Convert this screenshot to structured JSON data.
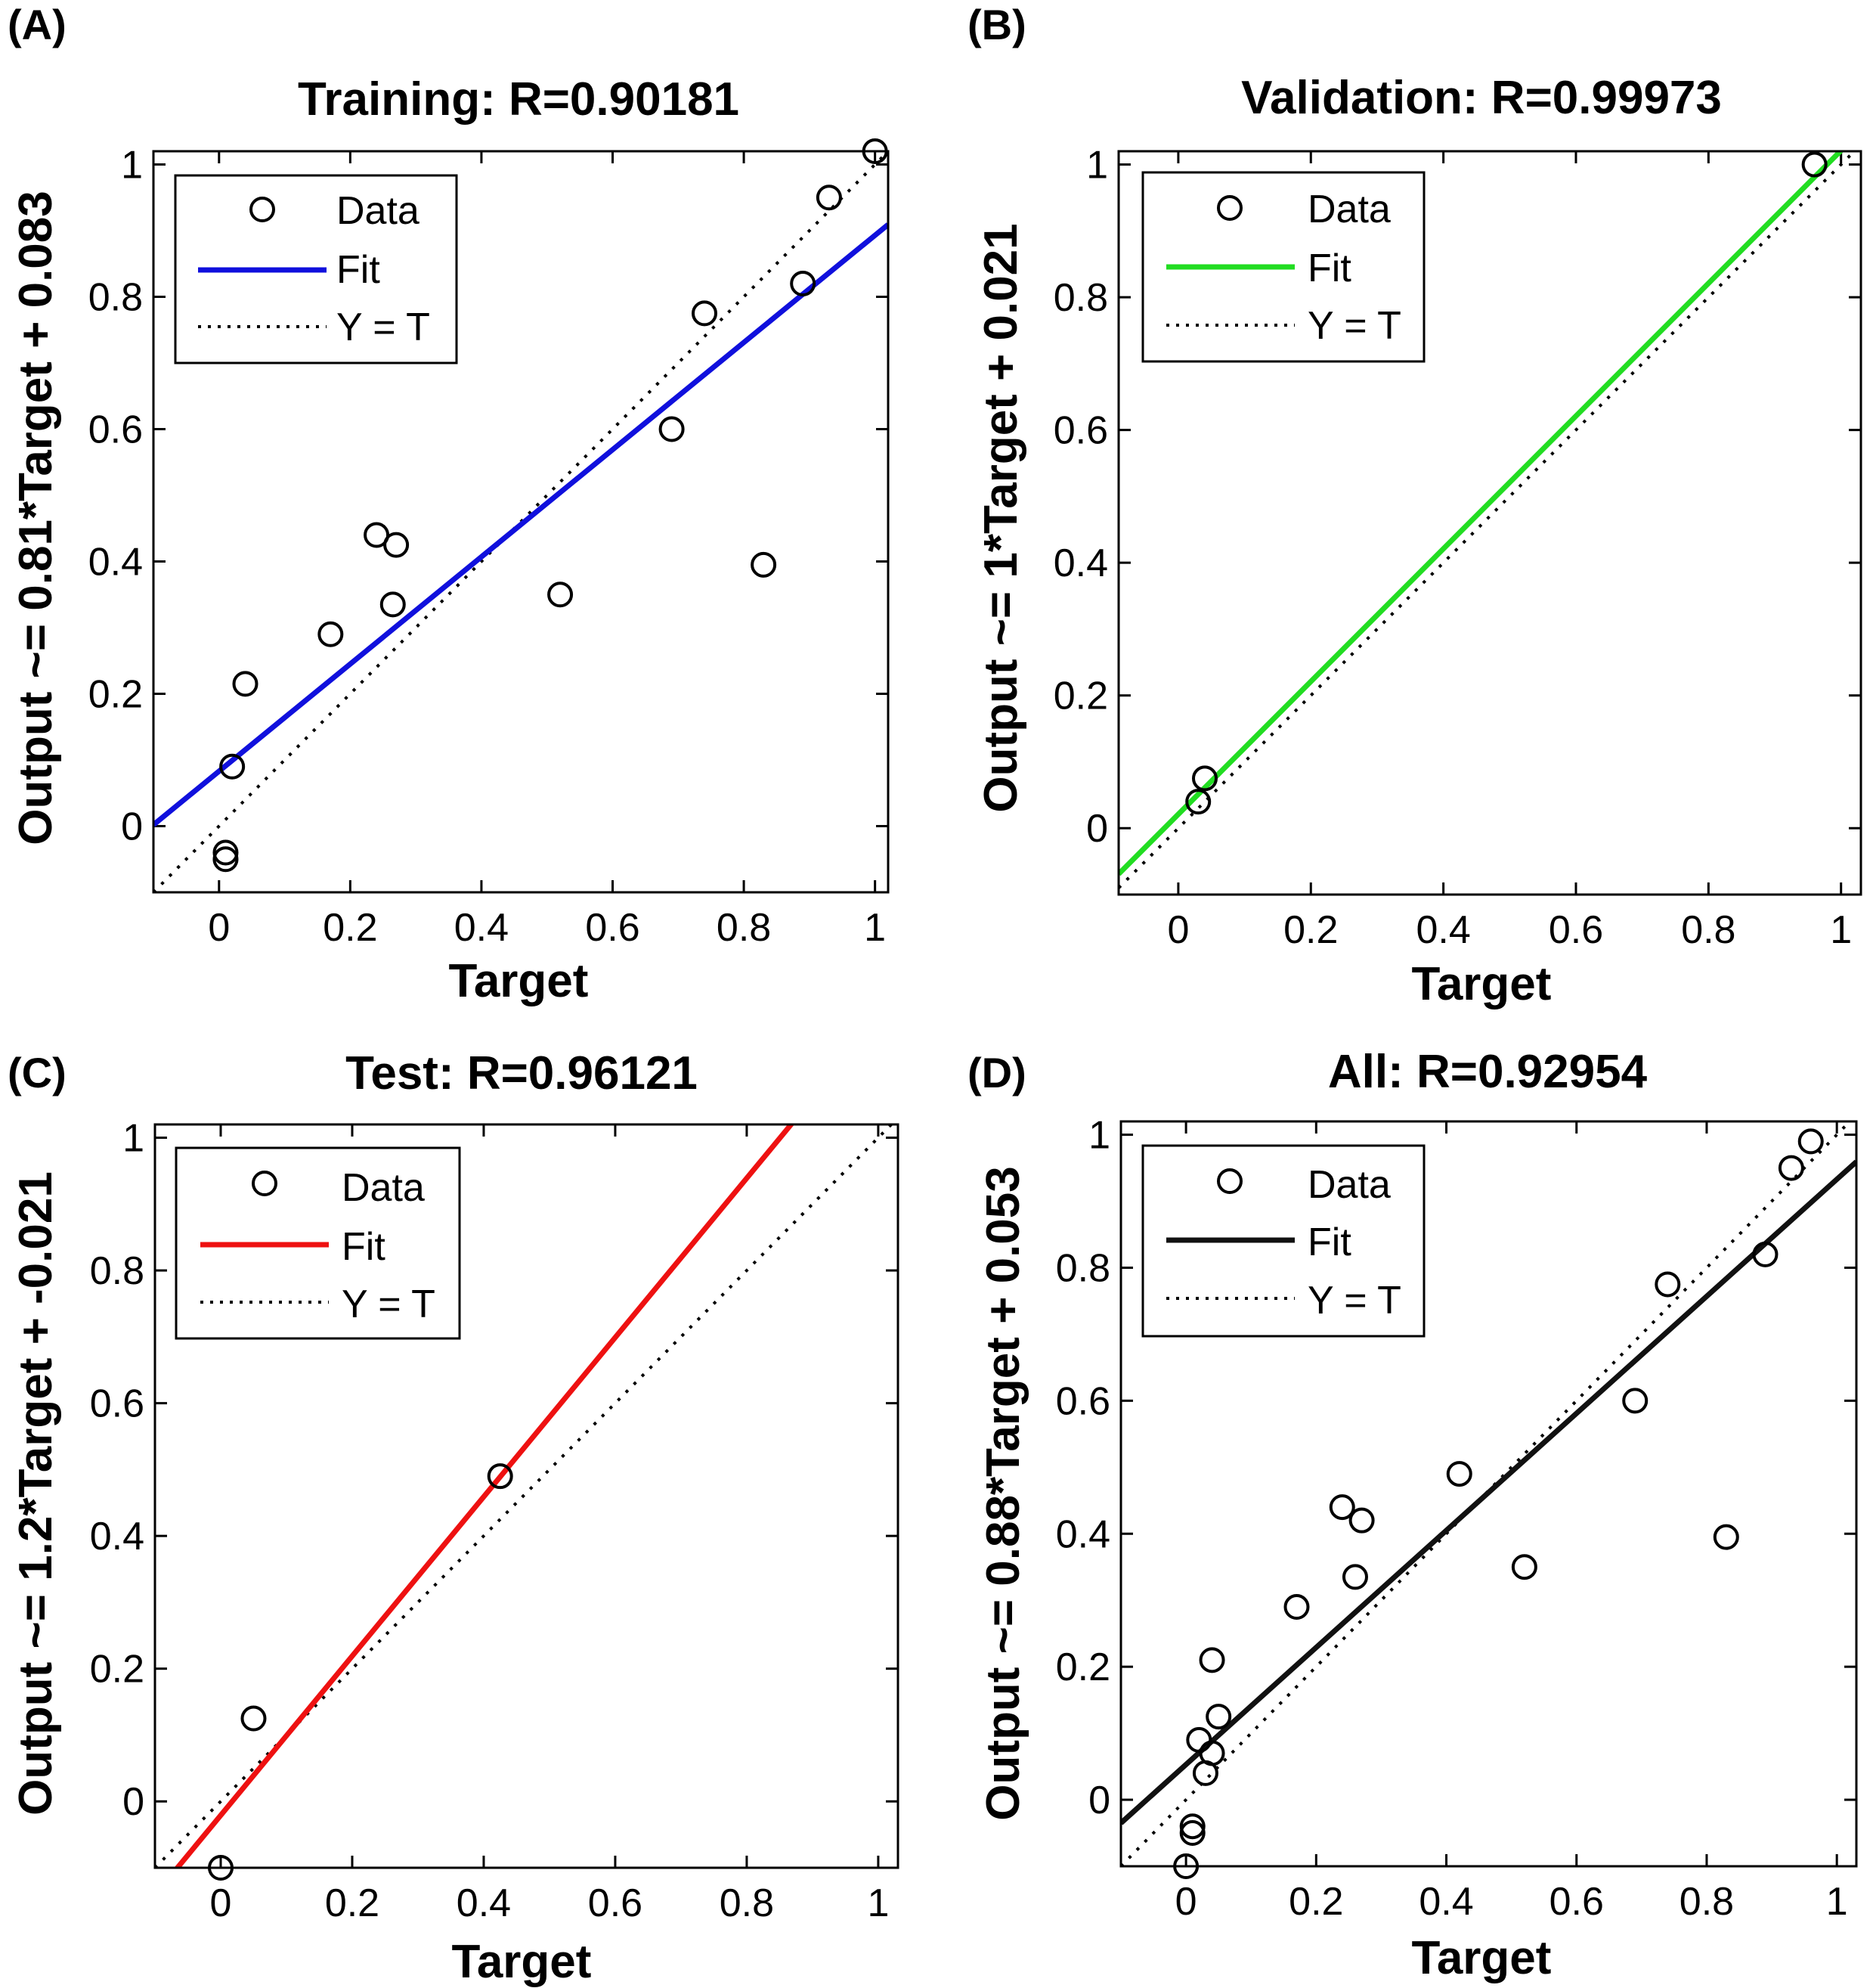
{
  "chart_data": [
    {
      "type": "scatter",
      "panel_label": "(A)",
      "title": "Training: R=0.90181",
      "xlabel": "Target",
      "ylabel": "Output ~= 0.81*Target + 0.083",
      "xlim": [
        -0.1,
        1.02
      ],
      "ylim": [
        -0.1,
        1.02
      ],
      "xticks": [
        "0",
        "0.2",
        "0.4",
        "0.6",
        "0.8",
        "1"
      ],
      "yticks": [
        "0",
        "0.2",
        "0.4",
        "0.6",
        "0.8",
        "1"
      ],
      "fit": {
        "slope": 0.81,
        "intercept": 0.083,
        "color": "#1010dd"
      },
      "legend": {
        "data": "Data",
        "fit": "Fit",
        "identity": "Y = T",
        "position": "top-left"
      },
      "points": [
        {
          "x": 0.01,
          "y": -0.05
        },
        {
          "x": 0.01,
          "y": -0.04
        },
        {
          "x": 0.02,
          "y": 0.09
        },
        {
          "x": 0.04,
          "y": 0.215
        },
        {
          "x": 0.17,
          "y": 0.29
        },
        {
          "x": 0.24,
          "y": 0.44
        },
        {
          "x": 0.27,
          "y": 0.425
        },
        {
          "x": 0.265,
          "y": 0.335
        },
        {
          "x": 0.52,
          "y": 0.35
        },
        {
          "x": 0.69,
          "y": 0.6
        },
        {
          "x": 0.74,
          "y": 0.775
        },
        {
          "x": 0.83,
          "y": 0.395
        },
        {
          "x": 0.89,
          "y": 0.82
        },
        {
          "x": 0.93,
          "y": 0.95
        },
        {
          "x": 1.0,
          "y": 1.02
        }
      ]
    },
    {
      "type": "scatter",
      "panel_label": "(B)",
      "title": "Validation: R=0.99973",
      "xlabel": "Target",
      "ylabel": "Output ~= 1*Target + 0.021",
      "xlim": [
        -0.09,
        1.03
      ],
      "ylim": [
        -0.1,
        1.02
      ],
      "xticks": [
        "0",
        "0.2",
        "0.4",
        "0.6",
        "0.8",
        "1"
      ],
      "yticks": [
        "0",
        "0.2",
        "0.4",
        "0.6",
        "0.8",
        "1"
      ],
      "fit": {
        "slope": 1.0,
        "intercept": 0.021,
        "color": "#22dd22"
      },
      "legend": {
        "data": "Data",
        "fit": "Fit",
        "identity": "Y = T",
        "position": "top-left"
      },
      "points": [
        {
          "x": 0.03,
          "y": 0.04
        },
        {
          "x": 0.04,
          "y": 0.075
        },
        {
          "x": 0.96,
          "y": 1.0
        }
      ]
    },
    {
      "type": "scatter",
      "panel_label": "(C)",
      "title": "Test: R=0.96121",
      "xlabel": "Target",
      "ylabel": "Output ~= 1.2*Target + -0.021",
      "xlim": [
        -0.1,
        1.03
      ],
      "ylim": [
        -0.1,
        1.02
      ],
      "xticks": [
        "0",
        "0.2",
        "0.4",
        "0.6",
        "0.8",
        "1"
      ],
      "yticks": [
        "0",
        "0.2",
        "0.4",
        "0.6",
        "0.8",
        "1"
      ],
      "fit": {
        "slope": 1.2,
        "intercept": -0.021,
        "color": "#ee1111"
      },
      "legend": {
        "data": "Data",
        "fit": "Fit",
        "identity": "Y = T",
        "position": "top-left"
      },
      "points": [
        {
          "x": 0.0,
          "y": -0.1
        },
        {
          "x": 0.05,
          "y": 0.125
        },
        {
          "x": 0.425,
          "y": 0.49
        }
      ]
    },
    {
      "type": "scatter",
      "panel_label": "(D)",
      "title": "All: R=0.92954",
      "xlabel": "Target",
      "ylabel": "Output ~= 0.88*Target + 0.053",
      "xlim": [
        -0.1,
        1.03
      ],
      "ylim": [
        -0.1,
        1.02
      ],
      "xticks": [
        "0",
        "0.2",
        "0.4",
        "0.6",
        "0.8",
        "1"
      ],
      "yticks": [
        "0",
        "0.2",
        "0.4",
        "0.6",
        "0.8",
        "1"
      ],
      "fit": {
        "slope": 0.88,
        "intercept": 0.053,
        "color": "#111111"
      },
      "legend": {
        "data": "Data",
        "fit": "Fit",
        "identity": "Y = T",
        "position": "top-left"
      },
      "points": [
        {
          "x": 0.0,
          "y": -0.1
        },
        {
          "x": 0.01,
          "y": -0.05
        },
        {
          "x": 0.01,
          "y": -0.04
        },
        {
          "x": 0.02,
          "y": 0.09
        },
        {
          "x": 0.03,
          "y": 0.04
        },
        {
          "x": 0.04,
          "y": 0.07
        },
        {
          "x": 0.04,
          "y": 0.21
        },
        {
          "x": 0.05,
          "y": 0.125
        },
        {
          "x": 0.17,
          "y": 0.29
        },
        {
          "x": 0.24,
          "y": 0.44
        },
        {
          "x": 0.27,
          "y": 0.42
        },
        {
          "x": 0.26,
          "y": 0.335
        },
        {
          "x": 0.42,
          "y": 0.49
        },
        {
          "x": 0.52,
          "y": 0.35
        },
        {
          "x": 0.69,
          "y": 0.6
        },
        {
          "x": 0.74,
          "y": 0.775
        },
        {
          "x": 0.83,
          "y": 0.395
        },
        {
          "x": 0.89,
          "y": 0.82
        },
        {
          "x": 0.93,
          "y": 0.95
        },
        {
          "x": 0.96,
          "y": 0.99
        }
      ]
    }
  ]
}
